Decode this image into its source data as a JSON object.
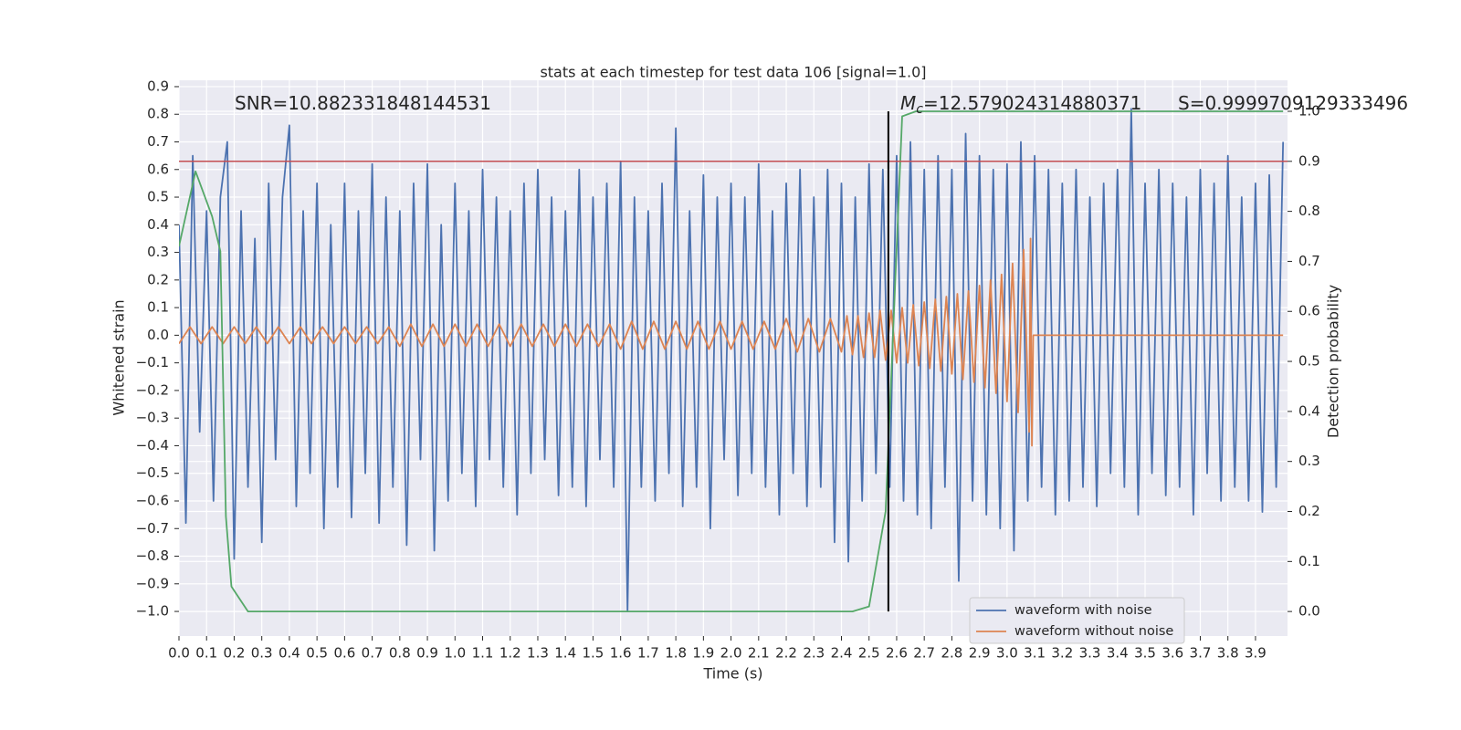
{
  "chart_data": {
    "type": "line",
    "title": "stats at each timestep for test data 106 [signal=1.0]",
    "x_label": "Time (s)",
    "y_label": "Whitened strain",
    "y2_label": "Detection probability",
    "background": "#eaeaf2",
    "grid": true,
    "legend": "lower right",
    "xlim": [
      0,
      4.016
    ],
    "ylim": [
      -1.089,
      0.923
    ],
    "y2lim": [
      -0.049,
      1.062
    ],
    "xticks": [
      {
        "value": 0,
        "label": "0.0"
      },
      0.1,
      0.2,
      0.3,
      0.4,
      0.5,
      0.6,
      0.7,
      0.8,
      0.9,
      {
        "value": 1,
        "label": "1.0"
      },
      1.1,
      1.2,
      1.3,
      1.4,
      1.5,
      1.6,
      1.7,
      1.8,
      1.9,
      {
        "value": 2,
        "label": "2.0"
      },
      2.1,
      2.2,
      2.3,
      2.4,
      2.5,
      2.6,
      2.7,
      2.8,
      2.9,
      {
        "value": 3,
        "label": "3.0"
      },
      3.1,
      3.2,
      3.3,
      3.4,
      3.5,
      3.6,
      3.7,
      3.8,
      3.9
    ],
    "yticks": [
      {
        "value": -1.0,
        "label": "−1.0"
      },
      {
        "value": -0.9,
        "label": "−0.9"
      },
      {
        "value": -0.8,
        "label": "−0.8"
      },
      {
        "value": -0.7,
        "label": "−0.7"
      },
      {
        "value": -0.6,
        "label": "−0.6"
      },
      {
        "value": -0.5,
        "label": "−0.5"
      },
      {
        "value": -0.4,
        "label": "−0.4"
      },
      {
        "value": -0.3,
        "label": "−0.3"
      },
      {
        "value": -0.2,
        "label": "−0.2"
      },
      {
        "value": -0.1,
        "label": "−0.1"
      },
      {
        "value": 0,
        "label": "0.0"
      },
      0.1,
      0.2,
      0.3,
      0.4,
      0.5,
      0.6,
      0.7,
      0.8,
      0.9
    ],
    "y2ticks": [
      {
        "value": 0,
        "label": "0.0"
      },
      0.1,
      0.2,
      0.3,
      0.4,
      0.5,
      0.6,
      0.7,
      0.8,
      0.9,
      {
        "value": 1,
        "label": "1.0"
      }
    ],
    "series": [
      {
        "name": "waveform with noise",
        "color": "#4c72b0",
        "x": [
          0,
          0.025,
          0.05,
          0.075,
          0.1,
          0.125,
          0.15,
          0.175,
          0.2,
          0.225,
          0.25,
          0.275,
          0.3,
          0.325,
          0.35,
          0.375,
          0.4,
          0.425,
          0.45,
          0.475,
          0.5,
          0.525,
          0.55,
          0.575,
          0.6,
          0.625,
          0.65,
          0.675,
          0.7,
          0.725,
          0.75,
          0.775,
          0.8,
          0.825,
          0.85,
          0.875,
          0.9,
          0.925,
          0.95,
          0.975,
          1.0,
          1.025,
          1.05,
          1.075,
          1.1,
          1.125,
          1.15,
          1.175,
          1.2,
          1.225,
          1.25,
          1.275,
          1.3,
          1.325,
          1.35,
          1.375,
          1.4,
          1.425,
          1.45,
          1.475,
          1.5,
          1.525,
          1.55,
          1.575,
          1.6,
          1.625,
          1.65,
          1.675,
          1.7,
          1.725,
          1.75,
          1.775,
          1.8,
          1.825,
          1.85,
          1.875,
          1.9,
          1.925,
          1.95,
          1.975,
          2.0,
          2.025,
          2.05,
          2.075,
          2.1,
          2.125,
          2.15,
          2.175,
          2.2,
          2.225,
          2.25,
          2.275,
          2.3,
          2.325,
          2.35,
          2.375,
          2.4,
          2.425,
          2.45,
          2.475,
          2.5,
          2.525,
          2.55,
          2.575,
          2.6,
          2.625,
          2.65,
          2.675,
          2.7,
          2.725,
          2.75,
          2.775,
          2.8,
          2.825,
          2.85,
          2.875,
          2.9,
          2.925,
          2.95,
          2.975,
          3.0,
          3.025,
          3.05,
          3.075,
          3.1,
          3.125,
          3.15,
          3.175,
          3.2,
          3.225,
          3.25,
          3.275,
          3.3,
          3.325,
          3.35,
          3.375,
          3.4,
          3.425,
          3.45,
          3.475,
          3.5,
          3.525,
          3.55,
          3.575,
          3.6,
          3.625,
          3.65,
          3.675,
          3.7,
          3.725,
          3.75,
          3.775,
          3.8,
          3.825,
          3.85,
          3.875,
          3.9,
          3.925,
          3.95,
          3.975,
          4.0
        ],
        "values": [
          0.4,
          -0.68,
          0.65,
          -0.35,
          0.45,
          -0.6,
          0.5,
          0.7,
          -0.81,
          0.45,
          -0.55,
          0.35,
          -0.75,
          0.55,
          -0.45,
          0.5,
          0.76,
          -0.62,
          0.45,
          -0.5,
          0.55,
          -0.7,
          0.4,
          -0.55,
          0.55,
          -0.66,
          0.45,
          -0.5,
          0.62,
          -0.68,
          0.5,
          -0.55,
          0.45,
          -0.76,
          0.55,
          -0.45,
          0.62,
          -0.78,
          0.4,
          -0.6,
          0.55,
          -0.5,
          0.45,
          -0.62,
          0.6,
          -0.45,
          0.5,
          -0.55,
          0.45,
          -0.65,
          0.55,
          -0.5,
          0.6,
          -0.45,
          0.5,
          -0.58,
          0.45,
          -0.55,
          0.6,
          -0.62,
          0.5,
          -0.45,
          0.55,
          -0.55,
          0.63,
          -1.0,
          0.5,
          -0.55,
          0.45,
          -0.6,
          0.55,
          -0.5,
          0.75,
          -0.62,
          0.45,
          -0.55,
          0.58,
          -0.7,
          0.5,
          -0.45,
          0.55,
          -0.58,
          0.5,
          -0.5,
          0.62,
          -0.55,
          0.45,
          -0.65,
          0.55,
          -0.5,
          0.6,
          -0.62,
          0.5,
          -0.55,
          0.6,
          -0.75,
          0.55,
          -0.82,
          0.5,
          -0.6,
          0.62,
          -0.5,
          0.6,
          -0.55,
          0.65,
          -0.6,
          0.7,
          -0.65,
          0.6,
          -0.7,
          0.65,
          -0.55,
          0.6,
          -0.89,
          0.73,
          -0.6,
          0.65,
          -0.65,
          0.6,
          -0.7,
          0.62,
          -0.78,
          0.7,
          -0.6,
          0.65,
          -0.55,
          0.6,
          -0.65,
          0.55,
          -0.6,
          0.6,
          -0.55,
          0.5,
          -0.62,
          0.55,
          -0.5,
          0.6,
          -0.55,
          0.82,
          -0.65,
          0.55,
          -0.5,
          0.6,
          -0.58,
          0.55,
          -0.55,
          0.5,
          -0.65,
          0.6,
          -0.5,
          0.55,
          -0.6,
          0.65,
          -0.55,
          0.5,
          -0.6,
          0.55,
          -0.64,
          0.58,
          -0.55,
          0.7
        ]
      },
      {
        "name": "waveform without noise",
        "color": "#dd8452",
        "x": [
          0,
          0.04,
          0.08,
          0.12,
          0.16,
          0.2,
          0.24,
          0.28,
          0.32,
          0.36,
          0.4,
          0.44,
          0.48,
          0.52,
          0.56,
          0.6,
          0.64,
          0.68,
          0.72,
          0.76,
          0.8,
          0.84,
          0.88,
          0.92,
          0.96,
          1.0,
          1.04,
          1.08,
          1.12,
          1.16,
          1.2,
          1.24,
          1.28,
          1.32,
          1.36,
          1.4,
          1.44,
          1.48,
          1.52,
          1.56,
          1.6,
          1.64,
          1.68,
          1.72,
          1.76,
          1.8,
          1.84,
          1.88,
          1.92,
          1.96,
          2.0,
          2.04,
          2.08,
          2.12,
          2.16,
          2.2,
          2.24,
          2.28,
          2.32,
          2.36,
          2.4,
          2.42,
          2.44,
          2.46,
          2.48,
          2.5,
          2.52,
          2.54,
          2.56,
          2.58,
          2.6,
          2.62,
          2.64,
          2.66,
          2.68,
          2.7,
          2.72,
          2.74,
          2.76,
          2.78,
          2.8,
          2.82,
          2.84,
          2.86,
          2.88,
          2.9,
          2.92,
          2.94,
          2.96,
          2.98,
          3.0,
          3.02,
          3.04,
          3.06,
          3.08,
          3.085,
          3.09,
          3.095,
          4.0
        ],
        "values": [
          -0.03,
          0.03,
          -0.03,
          0.03,
          -0.03,
          0.03,
          -0.03,
          0.03,
          -0.03,
          0.03,
          -0.03,
          0.03,
          -0.03,
          0.03,
          -0.03,
          0.03,
          -0.03,
          0.03,
          -0.03,
          0.03,
          -0.04,
          0.04,
          -0.04,
          0.04,
          -0.04,
          0.04,
          -0.04,
          0.04,
          -0.04,
          0.04,
          -0.04,
          0.04,
          -0.04,
          0.04,
          -0.04,
          0.04,
          -0.04,
          0.04,
          -0.04,
          0.04,
          -0.05,
          0.05,
          -0.05,
          0.05,
          -0.05,
          0.05,
          -0.05,
          0.05,
          -0.05,
          0.05,
          -0.05,
          0.05,
          -0.05,
          0.05,
          -0.05,
          0.06,
          -0.06,
          0.06,
          -0.06,
          0.06,
          -0.06,
          0.07,
          -0.07,
          0.07,
          -0.08,
          0.08,
          -0.08,
          0.09,
          -0.09,
          0.09,
          -0.1,
          0.1,
          -0.1,
          0.11,
          -0.11,
          0.12,
          -0.12,
          0.13,
          -0.13,
          0.14,
          -0.14,
          0.15,
          -0.16,
          0.16,
          -0.17,
          0.18,
          -0.19,
          0.2,
          -0.21,
          0.22,
          -0.24,
          0.26,
          -0.28,
          0.31,
          -0.35,
          0.35,
          -0.4,
          0,
          0
        ]
      },
      {
        "color": "#55a868",
        "axis": "y2",
        "x": [
          0,
          0.06,
          0.12,
          0.15,
          0.17,
          0.19,
          0.25,
          2.44,
          2.5,
          2.56,
          2.62,
          2.67,
          4.0
        ],
        "values": [
          0.73,
          0.88,
          0.79,
          0.72,
          0.19,
          0.05,
          0.0,
          0.0,
          0.01,
          0.2,
          0.99,
          1.0,
          1.0
        ]
      }
    ],
    "hlines": [
      {
        "value": 0.9,
        "axis": "y2",
        "color": "#c44e52"
      }
    ],
    "vlines": [
      {
        "x": 2.57,
        "ymin": 0,
        "ymax": 1,
        "axis": "y2",
        "color": "#000000"
      }
    ],
    "annotations": [
      {
        "text": "SNR=10.882331848144531"
      },
      {
        "symbol": "M",
        "subscript": "c",
        "text": "=12.579024314880371"
      },
      {
        "text": "S=0.9999709129333496"
      }
    ]
  }
}
